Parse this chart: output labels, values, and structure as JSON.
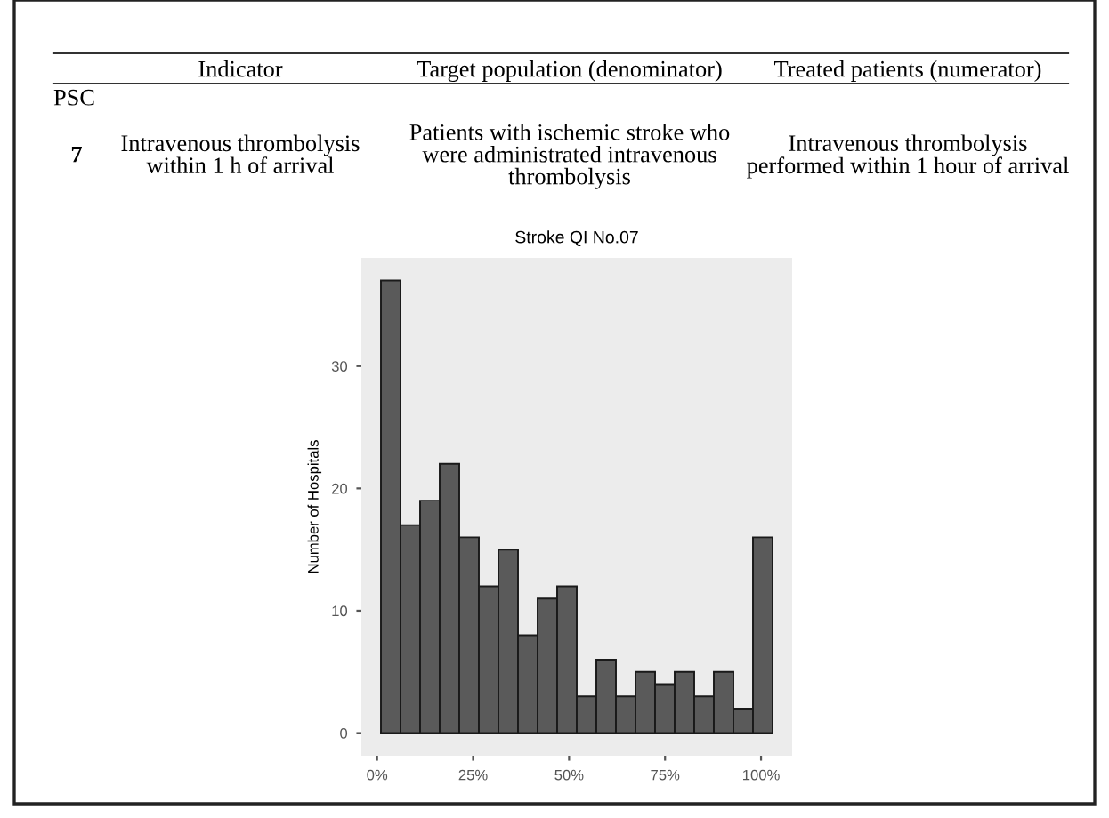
{
  "chart_data": {
    "type": "histogram",
    "title": "Stroke QI No.07",
    "ylabel": "Number of Hospitals",
    "bins": [
      1,
      6.1,
      11.2,
      16.3,
      21.4,
      26.5,
      31.6,
      36.7,
      41.8,
      46.9,
      52,
      57.1,
      62.2,
      67.3,
      72.4,
      77.5,
      82.6,
      87.7,
      92.8,
      97.9,
      103
    ],
    "values": [
      37,
      17,
      19,
      22,
      16,
      12,
      15,
      8,
      11,
      12,
      3,
      6,
      3,
      5,
      4,
      5,
      3,
      5,
      2,
      16
    ],
    "color": "#5a5a5a",
    "xlim": [
      -4.1,
      108.1
    ],
    "ylim": [
      -1.85,
      38.85
    ],
    "xticks": [
      {
        "value": 0,
        "label": "0%"
      },
      {
        "value": 25,
        "label": "25%"
      },
      {
        "value": 50,
        "label": "50%"
      },
      {
        "value": 75,
        "label": "75%"
      },
      {
        "value": 100,
        "label": "100%"
      }
    ],
    "yticks": [
      0,
      10,
      20,
      30
    ],
    "grid": false,
    "annotations": [
      "Indicator",
      "Target population (denominator)",
      "Treated patients (numerator)",
      "PSC",
      "7",
      "Intravenous thrombolysis\nwithin 1 h of arrival",
      "Patients with ischemic stroke who\nwere administrated intravenous\nthrombolysis",
      "Intravenous thrombolysis\nperformed within 1 hour of arrival"
    ]
  }
}
